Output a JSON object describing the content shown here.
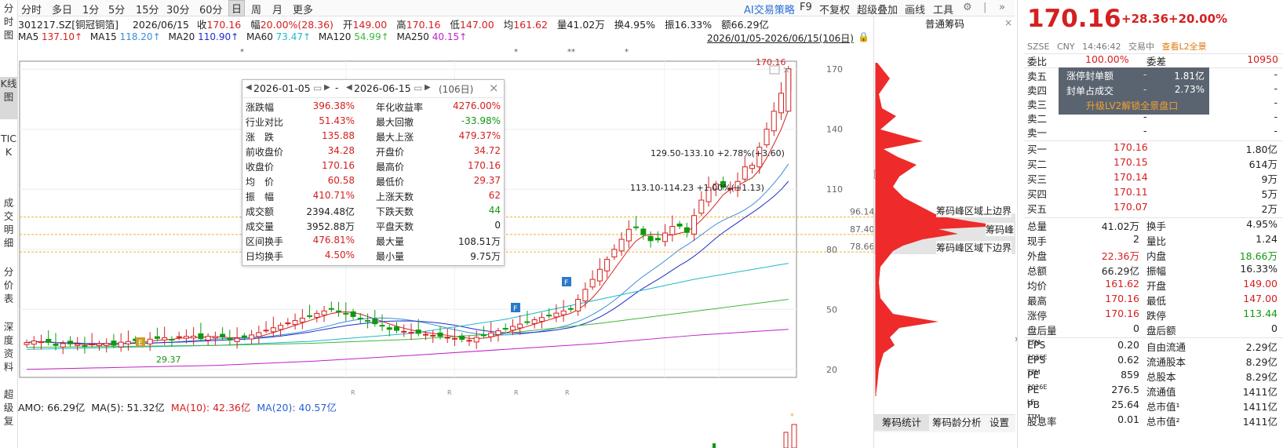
{
  "left_nav": [
    {
      "label": "分时图",
      "active": false
    },
    {
      "label": "K线图",
      "active": true
    },
    {
      "label": "TICK",
      "active": false
    },
    {
      "label": "成交明细",
      "active": false
    },
    {
      "label": "分价表",
      "active": false
    },
    {
      "label": "深度资料",
      "active": false
    },
    {
      "label": "超级复",
      "active": false
    }
  ],
  "toolbar": {
    "periods": [
      "分时",
      "多日",
      "1分",
      "5分",
      "15分",
      "30分",
      "60分",
      "日",
      "周",
      "月",
      "更多"
    ],
    "active_period": "日",
    "right_items": [
      "AI交易策略",
      "F9",
      "不复权",
      "超级叠加",
      "画线",
      "工具"
    ]
  },
  "info": {
    "code": "301217.SZ[铜冠铜箔]",
    "date": "2026/06/15",
    "close_label": "收",
    "close": "170.16",
    "change_label": "幅",
    "change": "20.00%(28.36)",
    "open_label": "开",
    "open": "149.00",
    "high_label": "高",
    "high": "170.16",
    "low_label": "低",
    "low": "147.00",
    "avg_label": "均",
    "avg": "161.62",
    "vol_label": "量",
    "vol": "41.02万",
    "turnover_label": "换",
    "turnover": "4.95%",
    "amp_label": "振",
    "amp": "16.33%",
    "amount_label": "额",
    "amount": "66.29亿"
  },
  "ma": [
    {
      "name": "MA5",
      "value": "137.10↑",
      "color": "#d42020"
    },
    {
      "name": "MA15",
      "value": "118.20↑",
      "color": "#3a8fd8"
    },
    {
      "name": "MA20",
      "value": "110.90↑",
      "color": "#1f2fc8"
    },
    {
      "name": "MA60",
      "value": "73.47↑",
      "color": "#20b8c8"
    },
    {
      "name": "MA120",
      "value": "54.99↑",
      "color": "#3cb83c"
    },
    {
      "name": "MA250",
      "value": "40.15↑",
      "color": "#c020c8"
    }
  ],
  "range_label": "2026/01/05-2026/06/15(106日)",
  "chart_data": {
    "type": "candlestick",
    "y_ticks": [
      "170",
      "140",
      "110",
      "80",
      "50",
      "20"
    ],
    "right_price_labels": [
      "96.14",
      "87.40",
      "78.66"
    ],
    "markers": [
      "E",
      "F",
      "F"
    ],
    "top_price_label": "170.16",
    "low_price_label": "29.37",
    "annotations": [
      {
        "text": "129.50-133.10 +2.78%(+3.60)"
      },
      {
        "text": "113.10-114.23 +1.00%(+1.13)"
      }
    ],
    "r_labels": [
      "R",
      "R",
      "R",
      "R"
    ],
    "stars": [
      "*",
      "*",
      "**",
      "*"
    ]
  },
  "popup": {
    "start": "2026-01-05",
    "end": "2026-06-15",
    "days": "(106日)",
    "rows": [
      {
        "l1": "涨跌幅",
        "v1": "396.38%",
        "c1": "red",
        "l2": "年化收益率",
        "v2": "4276.00%",
        "c2": "red"
      },
      {
        "l1": "行业对比",
        "v1": "51.43%",
        "c1": "red",
        "l2": "最大回撤",
        "v2": "-33.98%",
        "c2": "green"
      },
      {
        "l1": "涨　跌",
        "v1": "135.88",
        "c1": "red",
        "l2": "最大上涨",
        "v2": "479.37%",
        "c2": "red"
      },
      {
        "l1": "前收盘价",
        "v1": "34.28",
        "c1": "red",
        "l2": "开盘价",
        "v2": "34.72",
        "c2": "red"
      },
      {
        "l1": "收盘价",
        "v1": "170.16",
        "c1": "red",
        "l2": "最高价",
        "v2": "170.16",
        "c2": "red"
      },
      {
        "l1": "均　价",
        "v1": "60.58",
        "c1": "red",
        "l2": "最低价",
        "v2": "29.37",
        "c2": "red"
      },
      {
        "l1": "振　幅",
        "v1": "410.71%",
        "c1": "red",
        "l2": "上涨天数",
        "v2": "62",
        "c2": "red"
      },
      {
        "l1": "成交额",
        "v1": "2394.48亿",
        "c1": "black",
        "l2": "下跌天数",
        "v2": "44",
        "c2": "green"
      },
      {
        "l1": "成交量",
        "v1": "3952.88万",
        "c1": "black",
        "l2": "平盘天数",
        "v2": "0",
        "c2": "black"
      },
      {
        "l1": "区间换手",
        "v1": "476.81%",
        "c1": "red",
        "l2": "最大量",
        "v2": "108.51万",
        "c2": "black"
      },
      {
        "l1": "日均换手",
        "v1": "4.50%",
        "c1": "red",
        "l2": "最小量",
        "v2": "9.75万",
        "c2": "black"
      }
    ]
  },
  "amo": {
    "amo": "AMO: 66.29亿",
    "ma5": "MA(5): 51.32亿",
    "ma10": "MA(10): 42.36亿",
    "ma20": "MA(20): 40.57亿"
  },
  "dist": {
    "title": "普通筹码",
    "labels": [
      "筹码峰区域上边界",
      "筹码峰",
      "筹码峰区域下边界"
    ],
    "tabs": [
      "筹码统计",
      "筹码龄分析",
      "设置"
    ]
  },
  "quote": {
    "price": "170.16",
    "change": "+28.36",
    "pct": "+20.00%",
    "market": "SZSE",
    "currency": "CNY",
    "time": "14:46:42",
    "status": "交易中",
    "l2_link": "查看L2全景",
    "weibi_label": "委比",
    "weibi": "100.00%",
    "weicha_label": "委差",
    "weicha": "10950",
    "sells": [
      {
        "label": "卖五",
        "price": "-",
        "vol": "-"
      },
      {
        "label": "卖四",
        "price": "-",
        "vol": "-"
      },
      {
        "label": "卖三",
        "price": "-",
        "vol": "-"
      },
      {
        "label": "卖二",
        "price": "-",
        "vol": "-"
      },
      {
        "label": "卖一",
        "price": "-",
        "vol": "-"
      }
    ],
    "overlay": {
      "seal_label": "涨停封单额",
      "seal_dash": "-",
      "seal": "1.81亿",
      "ratio_label": "封单占成交",
      "ratio_dash": "-",
      "ratio": "2.73%",
      "upgrade": "升级LV2解锁全景盘口"
    },
    "buys": [
      {
        "label": "买一",
        "price": "170.16",
        "vol": "1.80亿"
      },
      {
        "label": "买二",
        "price": "170.15",
        "vol": "614万"
      },
      {
        "label": "买三",
        "price": "170.14",
        "vol": "9万"
      },
      {
        "label": "买四",
        "price": "170.11",
        "vol": "5万"
      },
      {
        "label": "买五",
        "price": "170.07",
        "vol": "2万"
      }
    ],
    "stats": [
      {
        "l1": "总量",
        "v1": "41.02万",
        "c1": "black",
        "l2": "换手",
        "v2": "4.95%",
        "c2": "black"
      },
      {
        "l1": "现手",
        "v1": "2",
        "c1": "black",
        "l2": "量比",
        "v2": "1.24",
        "c2": "black"
      },
      {
        "l1": "外盘",
        "v1": "22.36万",
        "c1": "red",
        "l2": "内盘",
        "v2": "18.66万",
        "c2": "green"
      },
      {
        "l1": "总额",
        "v1": "66.29亿",
        "c1": "black",
        "l2": "振幅",
        "v2": "16.33%",
        "c2": "black"
      },
      {
        "l1": "均价",
        "v1": "161.62",
        "c1": "red",
        "l2": "开盘",
        "v2": "149.00",
        "c2": "red"
      },
      {
        "l1": "最高",
        "v1": "170.16",
        "c1": "red",
        "l2": "最低",
        "v2": "147.00",
        "c2": "red"
      },
      {
        "l1": "涨停",
        "v1": "170.16",
        "c1": "red",
        "l2": "跌停",
        "v2": "113.44",
        "c2": "green"
      },
      {
        "l1": "盘后量",
        "v1": "0",
        "c1": "black",
        "l2": "盘后额",
        "v2": "0",
        "c2": "black"
      }
    ],
    "fin": [
      {
        "l1": "EPS",
        "s1": "TTM",
        "v1": "0.20",
        "l2": "自由流通",
        "v2": "2.29亿"
      },
      {
        "l1": "EPS",
        "s1": "2026E",
        "v1": "0.62",
        "l2": "流通股本",
        "v2": "8.29亿"
      },
      {
        "l1": "PE",
        "s1": "TTM",
        "v1": "859",
        "l2": "总股本",
        "v2": "8.29亿"
      },
      {
        "l1": "PE",
        "s1": "2026E",
        "v1": "276.5",
        "l2": "流通值",
        "v2": "1411亿"
      },
      {
        "l1": "PB",
        "s1": "LF",
        "v1": "25.64",
        "l2": "总市值¹",
        "v2": "1411亿"
      },
      {
        "l1": "股息率",
        "s1": "TTM",
        "v1": "0.01",
        "l2": "总市值²",
        "v2": "1411亿"
      }
    ]
  }
}
